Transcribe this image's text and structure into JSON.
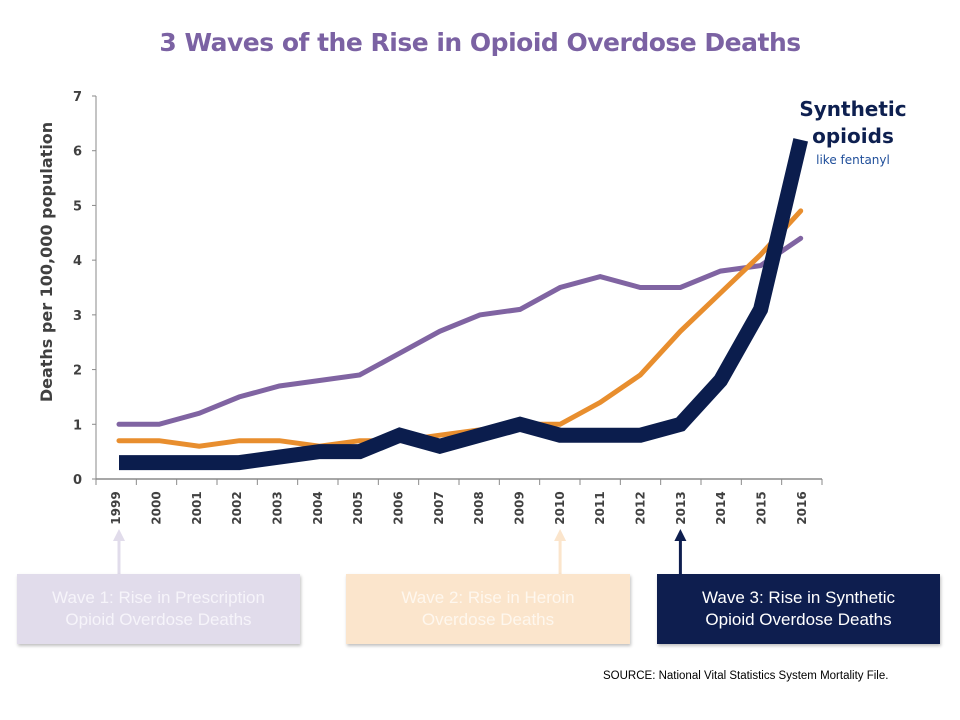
{
  "chart_data": {
    "type": "line",
    "title": "3 Waves of the Rise in Opioid Overdose Deaths",
    "xlabel": "",
    "ylabel": "Deaths per 100,000 population",
    "ylim": [
      0,
      7
    ],
    "yticks": [
      "0",
      "1",
      "2",
      "3",
      "4",
      "5",
      "6",
      "7"
    ],
    "grid": false,
    "categories": [
      "1999",
      "2000",
      "2001",
      "2002",
      "2003",
      "2004",
      "2005",
      "2006",
      "2007",
      "2008",
      "2009",
      "2010",
      "2011",
      "2012",
      "2013",
      "2014",
      "2015",
      "2016"
    ],
    "series": [
      {
        "name": "Prescription opioids",
        "color": "#8064A2",
        "values": [
          1.0,
          1.0,
          1.2,
          1.5,
          1.7,
          1.8,
          1.9,
          2.3,
          2.7,
          3.0,
          3.1,
          3.5,
          3.7,
          3.5,
          3.5,
          3.8,
          3.9,
          4.4
        ]
      },
      {
        "name": "Heroin",
        "color": "#E88E2E",
        "values": [
          0.7,
          0.7,
          0.6,
          0.7,
          0.7,
          0.6,
          0.7,
          0.7,
          0.8,
          0.9,
          1.0,
          1.0,
          1.4,
          1.9,
          2.7,
          3.4,
          4.1,
          4.9
        ]
      },
      {
        "name": "Synthetic opioids",
        "color": "#0B1D4D",
        "values": [
          0.3,
          0.3,
          0.3,
          0.3,
          0.4,
          0.5,
          0.5,
          0.8,
          0.6,
          0.8,
          1.0,
          0.8,
          0.8,
          0.8,
          1.0,
          1.8,
          3.1,
          6.2
        ]
      }
    ],
    "annotations": [
      {
        "text": "Synthetic",
        "style": "bold"
      },
      {
        "text": "opioids",
        "style": "bold"
      },
      {
        "text": "like fentanyl",
        "style": "normal"
      }
    ],
    "wave_markers": [
      {
        "year": "1999",
        "color": "#E1DCEB",
        "label_line1": "Wave 1: Rise in Prescription",
        "label_line2": "Opioid Overdose Deaths"
      },
      {
        "year": "2010",
        "color": "#FBE5CC",
        "label_line1": "Wave 2: Rise in Heroin",
        "label_line2": "Overdose Deaths"
      },
      {
        "year": "2013",
        "color": "#0E1E4F",
        "label_line1": "Wave 3: Rise in Synthetic",
        "label_line2": "Opioid Overdose Deaths"
      }
    ]
  },
  "source": "SOURCE: National Vital Statistics System Mortality File."
}
